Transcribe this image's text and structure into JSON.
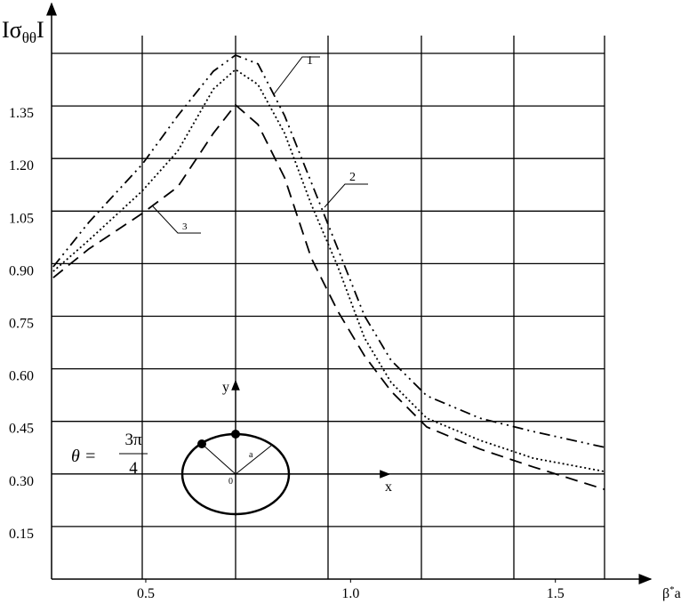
{
  "chart_data": {
    "type": "line",
    "y_label": [
      "Iσ",
      "θθ",
      "I"
    ],
    "x_label": [
      "β",
      "*",
      "a"
    ],
    "x": [
      0.274,
      0.361,
      0.491,
      0.578,
      0.665,
      0.719,
      0.774,
      0.839,
      0.904,
      0.969,
      1.034,
      1.099,
      1.186,
      1.316,
      1.446,
      1.62
    ],
    "series": [
      {
        "name": "1",
        "color": "#000000",
        "dash": "dash-dot",
        "values": [
          0.891,
          1.018,
          1.183,
          1.322,
          1.449,
          1.495,
          1.47,
          1.322,
          1.132,
          0.942,
          0.751,
          0.624,
          0.523,
          0.459,
          0.421,
          0.376
        ]
      },
      {
        "name": "2",
        "color": "#000000",
        "dash": "dotted",
        "values": [
          0.878,
          0.967,
          1.107,
          1.221,
          1.398,
          1.454,
          1.411,
          1.272,
          1.069,
          0.891,
          0.688,
          0.561,
          0.459,
          0.396,
          0.345,
          0.307
        ]
      },
      {
        "name": "3",
        "color": "#000000",
        "dash": "dashed",
        "values": [
          0.86,
          0.942,
          1.043,
          1.119,
          1.272,
          1.353,
          1.297,
          1.145,
          0.916,
          0.764,
          0.637,
          0.536,
          0.434,
          0.371,
          0.32,
          0.256
        ]
      }
    ],
    "xlim": [
      0.27,
      1.62
    ],
    "xticks": [
      0.5,
      {
        "value": 1,
        "label": "1.0"
      },
      1.5
    ],
    "ylim": [
      0,
      1.5
    ],
    "yticks": [
      0.15,
      {
        "value": 0.3,
        "label": "0.30"
      },
      0.45,
      {
        "value": 0.6,
        "label": "0.60"
      },
      0.75,
      {
        "value": 0.9,
        "label": "0.90"
      },
      1.05,
      {
        "value": 1.2,
        "label": "1.20"
      },
      1.35
    ],
    "grid": true,
    "inset": {
      "formula_lhs": "θ =",
      "numerator": "3π",
      "denominator": "4",
      "x_axis": "x",
      "y_axis": "y",
      "origin": "0",
      "radius": "a"
    }
  }
}
